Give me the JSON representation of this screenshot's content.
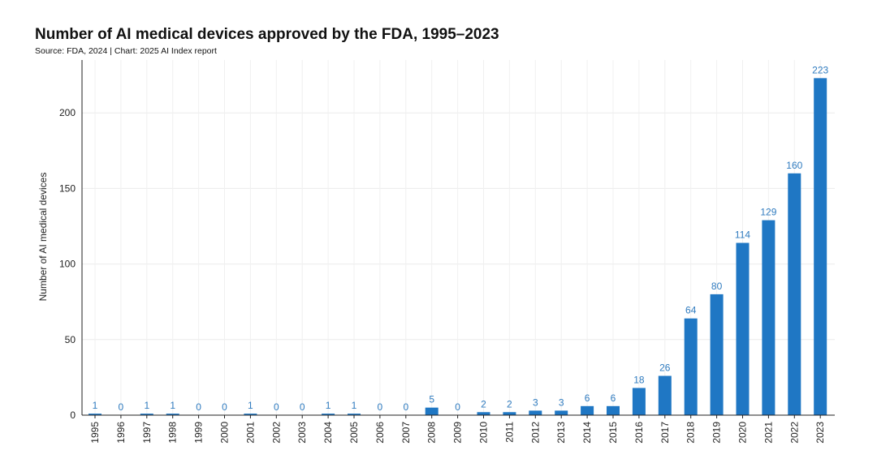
{
  "chart_data": {
    "type": "bar",
    "title": "Number of AI medical devices approved by the FDA, 1995–2023",
    "subtitle": "Source: FDA, 2024 | Chart: 2025 AI Index report",
    "ylabel": "Number of AI medical devices",
    "xlabel": "",
    "ylim": [
      0,
      235
    ],
    "yticks": [
      0,
      50,
      100,
      150,
      200
    ],
    "grid": true,
    "color": "#1f77c4",
    "label_color": "#2f7bbf",
    "categories": [
      "1995",
      "1996",
      "1997",
      "1998",
      "1999",
      "2000",
      "2001",
      "2002",
      "2003",
      "2004",
      "2005",
      "2006",
      "2007",
      "2008",
      "2009",
      "2010",
      "2011",
      "2012",
      "2013",
      "2014",
      "2015",
      "2016",
      "2017",
      "2018",
      "2019",
      "2020",
      "2021",
      "2022",
      "2023"
    ],
    "values": [
      1,
      0,
      1,
      1,
      0,
      0,
      1,
      0,
      0,
      1,
      1,
      0,
      0,
      5,
      0,
      2,
      2,
      3,
      3,
      6,
      6,
      18,
      26,
      64,
      80,
      114,
      129,
      160,
      223
    ]
  }
}
